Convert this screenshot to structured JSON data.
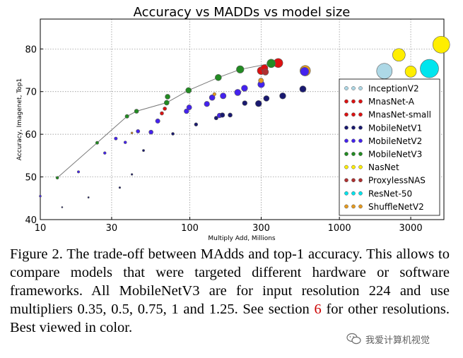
{
  "chart_data": {
    "type": "scatter",
    "title": "Accuracy vs MADDs vs model size",
    "xlabel": "Multiply Add, Millions",
    "ylabel": "Accuracy, Imagenet, Top1",
    "xscale": "log",
    "xlim": [
      10,
      5000
    ],
    "ylim": [
      40,
      87
    ],
    "xticks": [
      10,
      30,
      100,
      300,
      1000,
      3000
    ],
    "xtick_labels": [
      "10",
      "30",
      "100",
      "300",
      "1000",
      "3000"
    ],
    "yticks": [
      40,
      50,
      60,
      70,
      80
    ],
    "ytick_labels": [
      "40",
      "50",
      "60",
      "70",
      "80"
    ],
    "grid": true,
    "legend_position": "right",
    "series": [
      {
        "name": "InceptionV2",
        "color": "#add8e6",
        "points": [
          [
            2000,
            74.8,
            11
          ]
        ]
      },
      {
        "name": "MnasNet-A",
        "color": "#dd1111",
        "points": [
          [
            312,
            75.2,
            5.5
          ],
          [
            390,
            76.7,
            6.5
          ],
          [
            300,
            74.9,
            5.5
          ]
        ]
      },
      {
        "name": "MnasNet-small",
        "color": "#dd1111",
        "points": [
          [
            65,
            64.9,
            2.5
          ],
          [
            68,
            66.0,
            2.5
          ],
          [
            315,
            75.5,
            5.0
          ]
        ]
      },
      {
        "name": "MobileNetV1",
        "color": "#191970",
        "points": [
          [
            14,
            42.9,
            1.0
          ],
          [
            41,
            50.6,
            1.3
          ],
          [
            21,
            45.2,
            1.1
          ],
          [
            34,
            47.5,
            1.3
          ],
          [
            49,
            56.2,
            1.6
          ],
          [
            77,
            60.1,
            2.0
          ],
          [
            110,
            62.3,
            2.4
          ],
          [
            150,
            63.8,
            2.7
          ],
          [
            186,
            64.5,
            3.0
          ],
          [
            165,
            64.5,
            3.3
          ],
          [
            233,
            67.3,
            3.4
          ],
          [
            325,
            68.4,
            4.0
          ],
          [
            418,
            69.0,
            4.4
          ],
          [
            570,
            70.6,
            4.5
          ],
          [
            288,
            67.2,
            4.4
          ]
        ]
      },
      {
        "name": "MobileNetV2",
        "color": "#4422ee",
        "points": [
          [
            10,
            45.5,
            1.5
          ],
          [
            18,
            51.2,
            1.7
          ],
          [
            27,
            55.6,
            1.9
          ],
          [
            32,
            59.0,
            2.2
          ],
          [
            45,
            60.7,
            2.6
          ],
          [
            55,
            60.5,
            3.0
          ],
          [
            61,
            63.1,
            3.2
          ],
          [
            95,
            65.4,
            3.4
          ],
          [
            99,
            66.3,
            3.6
          ],
          [
            130,
            67.1,
            3.8
          ],
          [
            141,
            68.6,
            4.0
          ],
          [
            167,
            69.0,
            4.2
          ],
          [
            209,
            69.8,
            4.5
          ],
          [
            300,
            71.7,
            4.8
          ],
          [
            585,
            74.7,
            6.0
          ],
          [
            37,
            58.1,
            2.0
          ],
          [
            158,
            64.4,
            3.4
          ],
          [
            232,
            70.8,
            4.4
          ]
        ]
      },
      {
        "name": "MobileNetV3",
        "color": "#228b22",
        "points": [
          [
            13,
            49.8,
            2.0
          ],
          [
            24,
            58.0,
            2.2
          ],
          [
            38,
            64.2,
            2.7
          ],
          [
            44,
            65.4,
            3.0
          ],
          [
            70,
            67.4,
            3.5
          ],
          [
            71,
            68.8,
            3.5
          ],
          [
            98,
            70.3,
            4.0
          ],
          [
            155,
            73.3,
            4.5
          ],
          [
            217,
            75.2,
            5.3
          ],
          [
            350,
            76.6,
            6.0
          ]
        ]
      },
      {
        "name": "NasNet",
        "color": "#ffee00",
        "points": [
          [
            3000,
            74.7,
            8.0
          ],
          [
            2500,
            78.6,
            9.0
          ],
          [
            4800,
            81.0,
            12.0
          ]
        ]
      },
      {
        "name": "ProxylessNAS",
        "color": "#b03030",
        "points": [
          [
            320,
            74.6,
            4.5
          ]
        ]
      },
      {
        "name": "ResNet-50",
        "color": "#00e5ee",
        "points": [
          [
            4000,
            75.4,
            13.0
          ]
        ]
      },
      {
        "name": "ShuffleNetV2",
        "color": "#e69a1e",
        "points": [
          [
            41,
            60.3,
            1.4
          ],
          [
            146,
            69.4,
            2.3
          ],
          [
            299,
            72.6,
            3.5
          ],
          [
            591,
            74.9,
            7.4
          ]
        ]
      }
    ],
    "frontier_curve": [
      [
        13,
        49.8
      ],
      [
        24,
        58.0
      ],
      [
        38,
        64.2
      ],
      [
        44,
        65.4
      ],
      [
        70,
        67.4
      ],
      [
        98,
        70.3
      ],
      [
        155,
        73.3
      ],
      [
        217,
        75.2
      ],
      [
        350,
        76.6
      ]
    ]
  },
  "caption": {
    "text_before_ref": "Figure 2. The trade-off between MAdds and top-1 accuracy. This allows to compare models that were targeted different hardware or software frameworks.  All MobileNetV3 are for input resolution 224 and use multipliers 0.35, 0.5, 0.75, 1 and 1.25. See section ",
    "ref": "6",
    "ref_color": "#cc0000",
    "text_after_ref": " for other resolutions. Best viewed in color."
  },
  "watermark": {
    "text": "我爱计算机视觉",
    "icon": "wechat-icon"
  }
}
